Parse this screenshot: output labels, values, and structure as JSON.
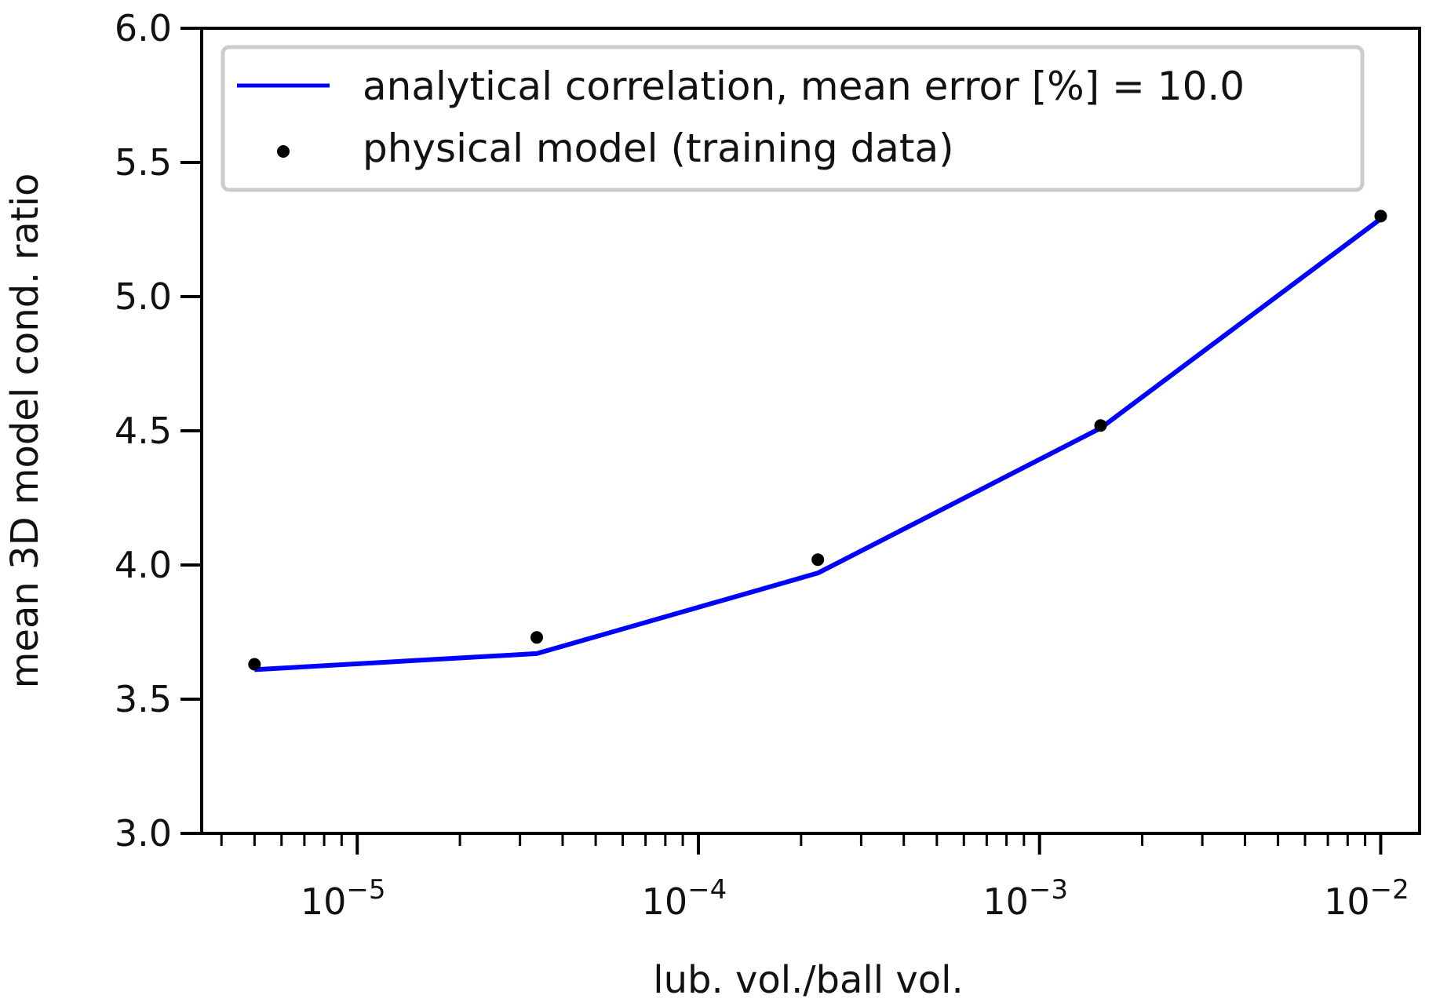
{
  "chart_data": {
    "type": "line",
    "title": "",
    "xlabel": "lub. vol./ball vol.",
    "ylabel": "mean 3D model cond. ratio",
    "xscale": "log",
    "xlim": [
      3.5e-06,
      0.013
    ],
    "ylim": [
      3.0,
      6.0
    ],
    "grid": false,
    "legend_position": "top-right",
    "x_ticks": [
      {
        "value": 1e-05,
        "base": "10",
        "exp": "−5"
      },
      {
        "value": 0.0001,
        "base": "10",
        "exp": "−4"
      },
      {
        "value": 0.001,
        "base": "10",
        "exp": "−3"
      },
      {
        "value": 0.01,
        "base": "10",
        "exp": "−2"
      }
    ],
    "y_ticks": [
      {
        "value": 3.0,
        "label": "3.0"
      },
      {
        "value": 3.5,
        "label": "3.5"
      },
      {
        "value": 4.0,
        "label": "4.0"
      },
      {
        "value": 4.5,
        "label": "4.5"
      },
      {
        "value": 5.0,
        "label": "5.0"
      },
      {
        "value": 5.5,
        "label": "5.5"
      },
      {
        "value": 6.0,
        "label": "6.0"
      }
    ],
    "series": [
      {
        "name": "analytical correlation, mean error [%] = 10.0",
        "kind": "line",
        "color": "#0000ff",
        "x": [
          5e-06,
          3.36e-05,
          0.000224,
          0.00151,
          0.01
        ],
        "y": [
          3.61,
          3.67,
          3.97,
          4.51,
          5.29
        ]
      },
      {
        "name": "physical model (training data)",
        "kind": "scatter",
        "color": "#000000",
        "x": [
          5e-06,
          3.36e-05,
          0.000224,
          0.00151,
          0.01
        ],
        "y": [
          3.63,
          3.73,
          4.02,
          4.52,
          5.3
        ]
      }
    ]
  }
}
